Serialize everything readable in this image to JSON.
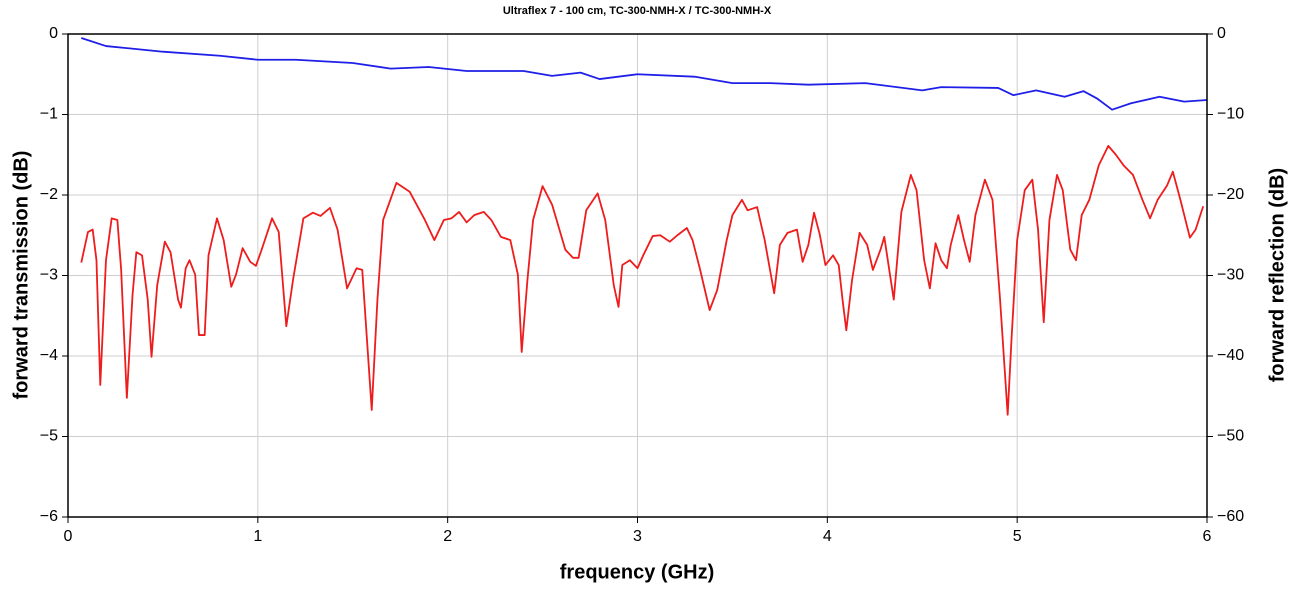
{
  "chart_data": {
    "type": "line",
    "title": "Ultraflex 7 - 100 cm, TC-300-NMH-X / TC-300-NMH-X",
    "xlabel": "frequency (GHz)",
    "ylabel": "forward transmission (dB)",
    "y2label": "forward reflection (dB)",
    "xlim": [
      0,
      6
    ],
    "xticks": [
      0,
      1,
      2,
      3,
      4,
      5,
      6
    ],
    "ylim": [
      -6,
      0
    ],
    "yticks": [
      0,
      {
        "value": -1,
        "label": "−1"
      },
      {
        "value": -2,
        "label": "−2"
      },
      {
        "value": -3,
        "label": "−3"
      },
      {
        "value": -4,
        "label": "−4"
      },
      {
        "value": -5,
        "label": "−5"
      },
      {
        "value": -6,
        "label": "−6"
      }
    ],
    "y2lim": [
      -60,
      0
    ],
    "y2ticks": [
      0,
      {
        "value": -10,
        "label": "−10"
      },
      {
        "value": -20,
        "label": "−20"
      },
      {
        "value": -30,
        "label": "−30"
      },
      {
        "value": -40,
        "label": "−40"
      },
      {
        "value": -50,
        "label": "−50"
      },
      {
        "value": -60,
        "label": "−60"
      }
    ],
    "grid": true,
    "series": [
      {
        "color": "#1f1fe8",
        "x": [
          0.07,
          0.2,
          0.5,
          0.8,
          1.0,
          1.2,
          1.5,
          1.7,
          1.9,
          2.1,
          2.4,
          2.55,
          2.7,
          2.8,
          3.0,
          3.3,
          3.5,
          3.7,
          3.9,
          4.2,
          4.5,
          4.6,
          4.9,
          4.98,
          5.1,
          5.25,
          5.35,
          5.42,
          5.5,
          5.6,
          5.75,
          5.88,
          6.0
        ],
        "values": [
          -0.05,
          -0.15,
          -0.22,
          -0.27,
          -0.32,
          -0.32,
          -0.36,
          -0.43,
          -0.41,
          -0.46,
          -0.46,
          -0.52,
          -0.48,
          -0.56,
          -0.5,
          -0.53,
          -0.61,
          -0.61,
          -0.63,
          -0.61,
          -0.7,
          -0.66,
          -0.67,
          -0.76,
          -0.7,
          -0.78,
          -0.71,
          -0.8,
          -0.94,
          -0.86,
          -0.78,
          -0.84,
          -0.82
        ]
      },
      {
        "color": "#ee1c1c",
        "axis": "y2",
        "x": [
          0.07,
          0.105,
          0.13,
          0.15,
          0.17,
          0.2,
          0.23,
          0.26,
          0.28,
          0.31,
          0.34,
          0.36,
          0.39,
          0.42,
          0.44,
          0.47,
          0.51,
          0.54,
          0.58,
          0.595,
          0.62,
          0.64,
          0.67,
          0.69,
          0.72,
          0.74,
          0.785,
          0.82,
          0.86,
          0.885,
          0.92,
          0.96,
          0.99,
          1.02,
          1.075,
          1.11,
          1.15,
          1.185,
          1.24,
          1.29,
          1.33,
          1.38,
          1.42,
          1.47,
          1.52,
          1.55,
          1.6,
          1.63,
          1.66,
          1.73,
          1.8,
          1.88,
          1.93,
          1.98,
          2.02,
          2.06,
          2.1,
          2.14,
          2.19,
          2.23,
          2.28,
          2.33,
          2.37,
          2.39,
          2.42,
          2.45,
          2.5,
          2.55,
          2.62,
          2.66,
          2.69,
          2.73,
          2.79,
          2.83,
          2.875,
          2.9,
          2.92,
          2.96,
          3.0,
          3.03,
          3.08,
          3.12,
          3.17,
          3.21,
          3.26,
          3.29,
          3.33,
          3.38,
          3.42,
          3.47,
          3.5,
          3.55,
          3.58,
          3.63,
          3.67,
          3.72,
          3.75,
          3.79,
          3.84,
          3.87,
          3.9,
          3.93,
          3.96,
          3.99,
          4.03,
          4.06,
          4.08,
          4.1,
          4.13,
          4.17,
          4.21,
          4.24,
          4.28,
          4.3,
          4.33,
          4.35,
          4.39,
          4.44,
          4.47,
          4.51,
          4.54,
          4.57,
          4.6,
          4.63,
          4.65,
          4.69,
          4.72,
          4.75,
          4.78,
          4.83,
          4.87,
          4.91,
          4.95,
          4.97,
          5.0,
          5.04,
          5.08,
          5.11,
          5.14,
          5.17,
          5.21,
          5.24,
          5.28,
          5.31,
          5.34,
          5.38,
          5.43,
          5.48,
          5.52,
          5.56,
          5.61,
          5.66,
          5.7,
          5.74,
          5.79,
          5.82,
          5.86,
          5.91,
          5.94,
          5.98
        ],
        "values": [
          -28.4,
          -24.6,
          -24.3,
          -28.1,
          -43.6,
          -28.1,
          -22.9,
          -23.1,
          -29.3,
          -45.2,
          -32.4,
          -27.1,
          -27.5,
          -33.0,
          -40.1,
          -31.2,
          -25.8,
          -27.1,
          -33.0,
          -34.0,
          -29.1,
          -28.1,
          -29.9,
          -37.4,
          -37.4,
          -27.5,
          -22.9,
          -25.6,
          -31.4,
          -29.9,
          -26.6,
          -28.3,
          -28.8,
          -26.8,
          -22.9,
          -24.6,
          -36.3,
          -30.6,
          -22.9,
          -22.2,
          -22.6,
          -21.6,
          -24.3,
          -31.6,
          -29.1,
          -29.3,
          -46.7,
          -33.0,
          -23.1,
          -18.5,
          -19.6,
          -23.1,
          -25.6,
          -23.1,
          -22.9,
          -22.1,
          -23.4,
          -22.5,
          -22.1,
          -23.1,
          -25.2,
          -25.6,
          -29.9,
          -39.5,
          -30.6,
          -23.1,
          -18.9,
          -21.2,
          -26.8,
          -27.8,
          -27.8,
          -21.9,
          -19.8,
          -23.1,
          -31.2,
          -33.9,
          -28.7,
          -28.1,
          -29.1,
          -27.5,
          -25.1,
          -25.0,
          -25.8,
          -25.0,
          -24.1,
          -25.6,
          -29.3,
          -34.3,
          -31.8,
          -25.6,
          -22.5,
          -20.6,
          -21.9,
          -21.5,
          -25.6,
          -32.2,
          -26.2,
          -24.7,
          -24.3,
          -28.3,
          -26.2,
          -22.2,
          -24.9,
          -28.7,
          -27.5,
          -28.7,
          -33.0,
          -36.8,
          -30.6,
          -24.7,
          -26.2,
          -29.3,
          -26.8,
          -25.2,
          -29.9,
          -33.0,
          -22.1,
          -17.5,
          -19.4,
          -28.1,
          -31.6,
          -26.0,
          -28.1,
          -29.1,
          -26.2,
          -22.5,
          -25.6,
          -28.3,
          -22.5,
          -18.1,
          -20.6,
          -33.0,
          -47.3,
          -38.0,
          -25.6,
          -19.4,
          -18.1,
          -24.3,
          -35.8,
          -23.1,
          -17.5,
          -19.4,
          -26.8,
          -28.1,
          -22.5,
          -20.6,
          -16.3,
          -13.9,
          -15.0,
          -16.3,
          -17.5,
          -20.6,
          -22.9,
          -20.6,
          -18.8,
          -17.1,
          -20.6,
          -25.3,
          -24.3,
          -21.4
        ]
      }
    ]
  }
}
